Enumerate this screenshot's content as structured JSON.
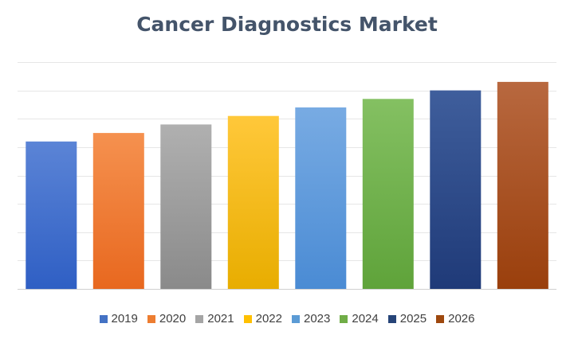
{
  "chart_data": {
    "type": "bar",
    "title": "Cancer Diagnostics Market",
    "categories": [
      "2019",
      "2020",
      "2021",
      "2022",
      "2023",
      "2024",
      "2025",
      "2026"
    ],
    "values": [
      52,
      55,
      58,
      61,
      64,
      67,
      70,
      73
    ],
    "ylim": [
      0,
      80
    ],
    "grid": true,
    "y_tick_labels_shown": false,
    "legend_position": "bottom",
    "colors": {
      "2019": [
        "#5b84d6",
        "#2f5fc4"
      ],
      "2020": [
        "#f5914f",
        "#e8681f"
      ],
      "2021": [
        "#b0b0b0",
        "#8a8a8a"
      ],
      "2022": [
        "#ffc83a",
        "#e8ad00"
      ],
      "2023": [
        "#78abe3",
        "#4a8bd4"
      ],
      "2024": [
        "#84c062",
        "#5fa33a"
      ],
      "2025": [
        "#3f5e9c",
        "#1f3a78"
      ],
      "2026": [
        "#b8683f",
        "#9a3f0c"
      ]
    },
    "legend_colors": [
      "#4472c4",
      "#ed7d31",
      "#a5a5a5",
      "#ffc000",
      "#5b9bd5",
      "#70ad47",
      "#264478",
      "#9e480e"
    ]
  }
}
